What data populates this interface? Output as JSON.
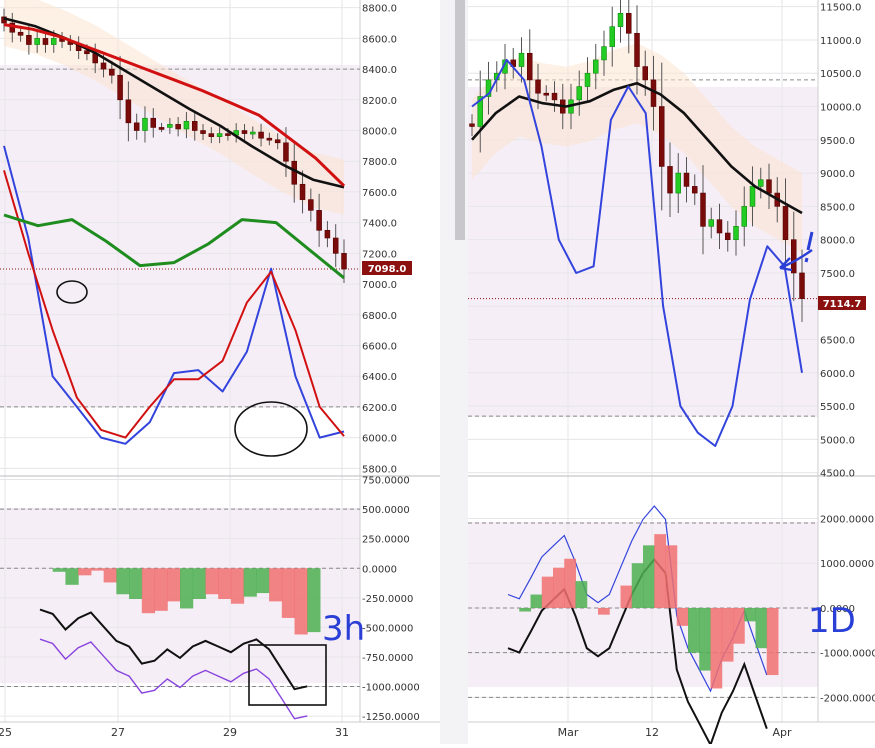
{
  "chart_data": [
    {
      "type": "line",
      "panel": "left-price",
      "y_ticks": [
        "8800.0",
        "8600.0",
        "8400.0",
        "8200.0",
        "8000.0",
        "7800.0",
        "7600.0",
        "7400.0",
        "7200.0",
        "7000.0",
        "6800.0",
        "6600.0",
        "6400.0",
        "6200.0",
        "6000.0",
        "5800.0"
      ],
      "ylim": [
        5750,
        8850
      ],
      "last_price_label": "7098.0",
      "last_price": 7098,
      "candles_close": [
        8700,
        8640,
        8620,
        8560,
        8600,
        8560,
        8600,
        8580,
        8560,
        8520,
        8500,
        8440,
        8400,
        8360,
        8200,
        8050,
        8000,
        8080,
        8020,
        8020,
        8040,
        8010,
        8060,
        8000,
        7980,
        7960,
        7980,
        7970,
        8000,
        7980,
        7990,
        7950,
        7940,
        7920,
        7800,
        7650,
        7550,
        7480,
        7350,
        7300,
        7200,
        7098
      ],
      "bull_flags": [
        0,
        0,
        0,
        0,
        1,
        0,
        1,
        0,
        0,
        0,
        0,
        0,
        0,
        0,
        0,
        0,
        0,
        1,
        0,
        0,
        1,
        0,
        1,
        0,
        0,
        0,
        1,
        0,
        1,
        0,
        1,
        0,
        0,
        0,
        0,
        0,
        0,
        0,
        0,
        0,
        0,
        0
      ],
      "series": [
        {
          "role": "moving-average",
          "color": "#111111",
          "values": [
            8730,
            8680,
            8600,
            8500,
            8380,
            8260,
            8140,
            8030,
            7900,
            7780,
            7680,
            7630
          ]
        },
        {
          "role": "slow-average",
          "color": "#d11111",
          "values": [
            8690,
            8660,
            8610,
            8540,
            8470,
            8400,
            8330,
            8260,
            8180,
            8100,
            7960,
            7820,
            7640
          ]
        },
        {
          "role": "stochastic-fast",
          "color": "#3344dd",
          "values": [
            7900,
            7300,
            6400,
            6200,
            6000,
            5960,
            6100,
            6420,
            6440,
            6300,
            6560,
            7100,
            6400,
            6000,
            6040
          ]
        },
        {
          "role": "stochastic-slow",
          "color": "#d11111",
          "values": [
            7740,
            7200,
            6700,
            6260,
            6050,
            6000,
            6200,
            6380,
            6380,
            6500,
            6880,
            7080,
            6700,
            6200,
            6010
          ]
        },
        {
          "role": "trend-line",
          "color": "#1e8c1e",
          "values": [
            7450,
            7380,
            7420,
            7280,
            7120,
            7140,
            7260,
            7420,
            7400,
            7220,
            7040
          ]
        }
      ],
      "x_ticks": [
        "25",
        "27",
        "29",
        "31"
      ]
    },
    {
      "type": "line",
      "panel": "left-oscillator",
      "y_ticks": [
        "750.0000",
        "500.0000",
        "250.0000",
        "0.0000",
        "-250.0000",
        "-500.0000",
        "-750.0000",
        "-1000.0000",
        "-1250.0000"
      ],
      "ylim": [
        -1300,
        780
      ],
      "histogram": [
        0,
        -30,
        -140,
        -60,
        -20,
        -120,
        -220,
        -260,
        -380,
        -360,
        -280,
        -340,
        -260,
        -220,
        -260,
        -300,
        -240,
        -210,
        -280,
        -420,
        -560,
        -540
      ],
      "x_ticks": [
        "25",
        "27",
        "29",
        "31"
      ],
      "annotation": "3h"
    },
    {
      "type": "line",
      "panel": "right-price",
      "y_ticks": [
        "11500.0",
        "11000.0",
        "10500.0",
        "10000.0",
        "9500.0",
        "9000.0",
        "8500.0",
        "8000.0",
        "7500.0",
        "7000.0",
        "6500.0",
        "6000.0",
        "5500.0",
        "5000.0",
        "4500.0"
      ],
      "ylim": [
        4450,
        11600
      ],
      "last_price_label": "7114.7",
      "last_price": 7114.7,
      "candles_close": [
        9700,
        10150,
        10400,
        10500,
        10700,
        10600,
        10800,
        10400,
        10200,
        10200,
        10100,
        9900,
        10100,
        10300,
        10500,
        10700,
        10900,
        11200,
        11400,
        11100,
        10600,
        10400,
        10000,
        9100,
        8700,
        9000,
        8800,
        8700,
        8200,
        8300,
        8100,
        8000,
        8200,
        8500,
        8800,
        8900,
        8700,
        8500,
        8000,
        7500,
        7114.7
      ],
      "series": [
        {
          "role": "moving-average",
          "color": "#111111",
          "values": [
            9500,
            9900,
            10150,
            10050,
            10000,
            10080,
            10250,
            10350,
            10180,
            9900,
            9500,
            9100,
            8800,
            8600,
            8400
          ]
        },
        {
          "role": "stochastic-fast",
          "color": "#3344dd",
          "values": [
            10000,
            10200,
            10700,
            10400,
            9400,
            8000,
            7500,
            7600,
            9800,
            10300,
            9900,
            7000,
            5500,
            5100,
            4900,
            5500,
            7100,
            7900,
            7600,
            6000
          ]
        }
      ],
      "x_ticks": [
        "Mar",
        "12",
        "Apr"
      ]
    },
    {
      "type": "line",
      "panel": "right-oscillator",
      "y_ticks": [
        "2000.0000",
        "1000.0000",
        "0.0000",
        "-1000.0000",
        "-2000.0000"
      ],
      "ylim": [
        -2550,
        2950
      ],
      "histogram": [
        0,
        -80,
        300,
        700,
        900,
        1100,
        600,
        0,
        -150,
        0,
        500,
        1000,
        1400,
        1650,
        1400,
        -400,
        -1000,
        -1400,
        -1800,
        -1200,
        -800,
        -300,
        -900,
        -1500
      ],
      "x_ticks": [
        "Mar",
        "12",
        "Apr"
      ],
      "annotation": "1D"
    }
  ]
}
